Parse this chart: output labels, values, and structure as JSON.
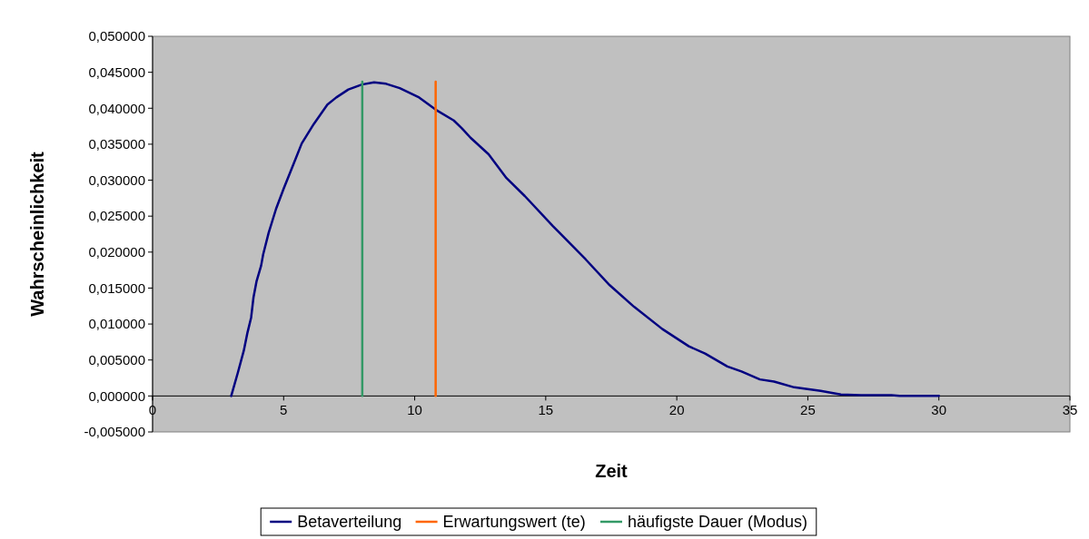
{
  "chart_data": {
    "type": "line",
    "xlabel": "Zeit",
    "ylabel": "Wahrscheinlichkeit",
    "xlim": [
      0,
      35
    ],
    "xticks": [
      0,
      5,
      10,
      15,
      20,
      25,
      30,
      35
    ],
    "ylim": [
      -0.005,
      0.05
    ],
    "yticks": [
      {
        "value": -0.005,
        "label": "-0,005000"
      },
      {
        "value": 0,
        "label": "0,000000"
      },
      {
        "value": 0.005,
        "label": "0,005000"
      },
      {
        "value": 0.01,
        "label": "0,010000"
      },
      {
        "value": 0.015,
        "label": "0,015000"
      },
      {
        "value": 0.02,
        "label": "0,020000"
      },
      {
        "value": 0.025,
        "label": "0,025000"
      },
      {
        "value": 0.03,
        "label": "0,030000"
      },
      {
        "value": 0.035,
        "label": "0,035000"
      },
      {
        "value": 0.04,
        "label": "0,040000"
      },
      {
        "value": 0.045,
        "label": "0,045000"
      },
      {
        "value": 0.05,
        "label": "0,050000"
      }
    ],
    "grid": false,
    "legend": "bottom",
    "marker": "none",
    "line_style": "solid",
    "series": [
      {
        "name": "Betaverteilung",
        "color": "#000080",
        "x": [
          3,
          3.25,
          3.48,
          3.62,
          3.76,
          3.85,
          3.97,
          4.14,
          4.22,
          4.43,
          4.71,
          5,
          5.34,
          5.69,
          6.15,
          6.67,
          7.01,
          7.47,
          7.99,
          8.45,
          8.91,
          9.43,
          10.17,
          10.8,
          11.49,
          11.8,
          12.13,
          12.82,
          13.5,
          14.2,
          15.28,
          16.52,
          17.44,
          18.37,
          19.45,
          20.46,
          21.08,
          21.93,
          22.47,
          23.17,
          23.71,
          24.48,
          25.49,
          26.26,
          27.03,
          28.19,
          28.5,
          30
        ],
        "values": [
          0,
          0.0032,
          0.0063,
          0.0088,
          0.0109,
          0.0137,
          0.016,
          0.0181,
          0.0197,
          0.0227,
          0.026,
          0.0288,
          0.0319,
          0.0351,
          0.0378,
          0.0405,
          0.0415,
          0.0426,
          0.0433,
          0.0436,
          0.0434,
          0.0428,
          0.0415,
          0.0398,
          0.0383,
          0.0372,
          0.0359,
          0.0336,
          0.0303,
          0.0278,
          0.0236,
          0.019,
          0.0154,
          0.0124,
          0.0093,
          0.0069,
          0.0059,
          0.0041,
          0.0034,
          0.0023,
          0.002,
          0.0012,
          0.0007,
          0.0002,
          0.0001,
          0.0001,
          0,
          0
        ]
      },
      {
        "name": "Erwartungswert (te)",
        "color": "#ff6600",
        "x": [
          10.8,
          10.8
        ],
        "values": [
          0,
          0.0437
        ]
      },
      {
        "name": "häufigste Dauer (Modus)",
        "color": "#339966",
        "x": [
          8,
          8
        ],
        "values": [
          0,
          0.0437
        ]
      }
    ]
  }
}
